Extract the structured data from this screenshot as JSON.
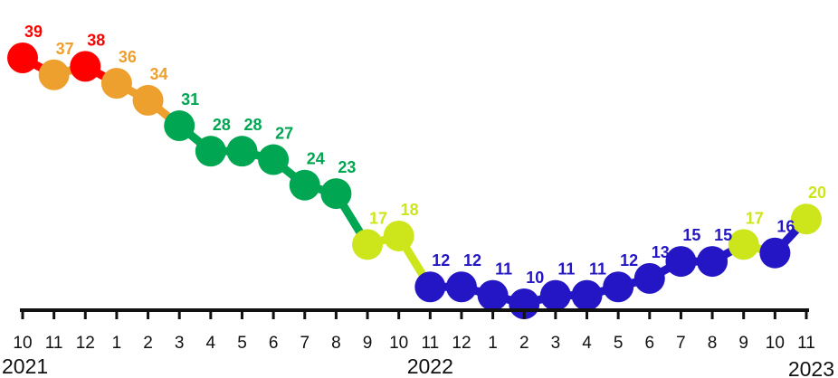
{
  "chart_data": {
    "type": "line",
    "colors": {
      "red": "#ff0000",
      "orange": "#eda02e",
      "green": "#00a651",
      "yellow": "#cde61b",
      "blue": "#2416c4",
      "axis": "#111111"
    },
    "x": [
      "10",
      "11",
      "12",
      "1",
      "2",
      "3",
      "4",
      "5",
      "6",
      "7",
      "8",
      "9",
      "10",
      "11",
      "12",
      "1",
      "2",
      "3",
      "4",
      "5",
      "6",
      "7",
      "8",
      "9",
      "10",
      "11"
    ],
    "years": [
      {
        "label": "2021",
        "at_index": 0
      },
      {
        "label": "2022",
        "at_index": 13
      },
      {
        "label": "2023",
        "at_index": 25
      }
    ],
    "series": [
      {
        "values": [
          39,
          37,
          38,
          36,
          34,
          31,
          28,
          28,
          27,
          24,
          23,
          17,
          18,
          12,
          12,
          11,
          10,
          11,
          11,
          12,
          13,
          15,
          15,
          17,
          16,
          20
        ],
        "point_colors": [
          "red",
          "orange",
          "red",
          "orange",
          "orange",
          "green",
          "green",
          "green",
          "green",
          "green",
          "green",
          "yellow",
          "yellow",
          "blue",
          "blue",
          "blue",
          "blue",
          "blue",
          "blue",
          "blue",
          "blue",
          "blue",
          "blue",
          "yellow",
          "blue",
          "yellow"
        ]
      }
    ],
    "ylim": [
      9,
      42
    ],
    "grid": false,
    "legend": false
  }
}
